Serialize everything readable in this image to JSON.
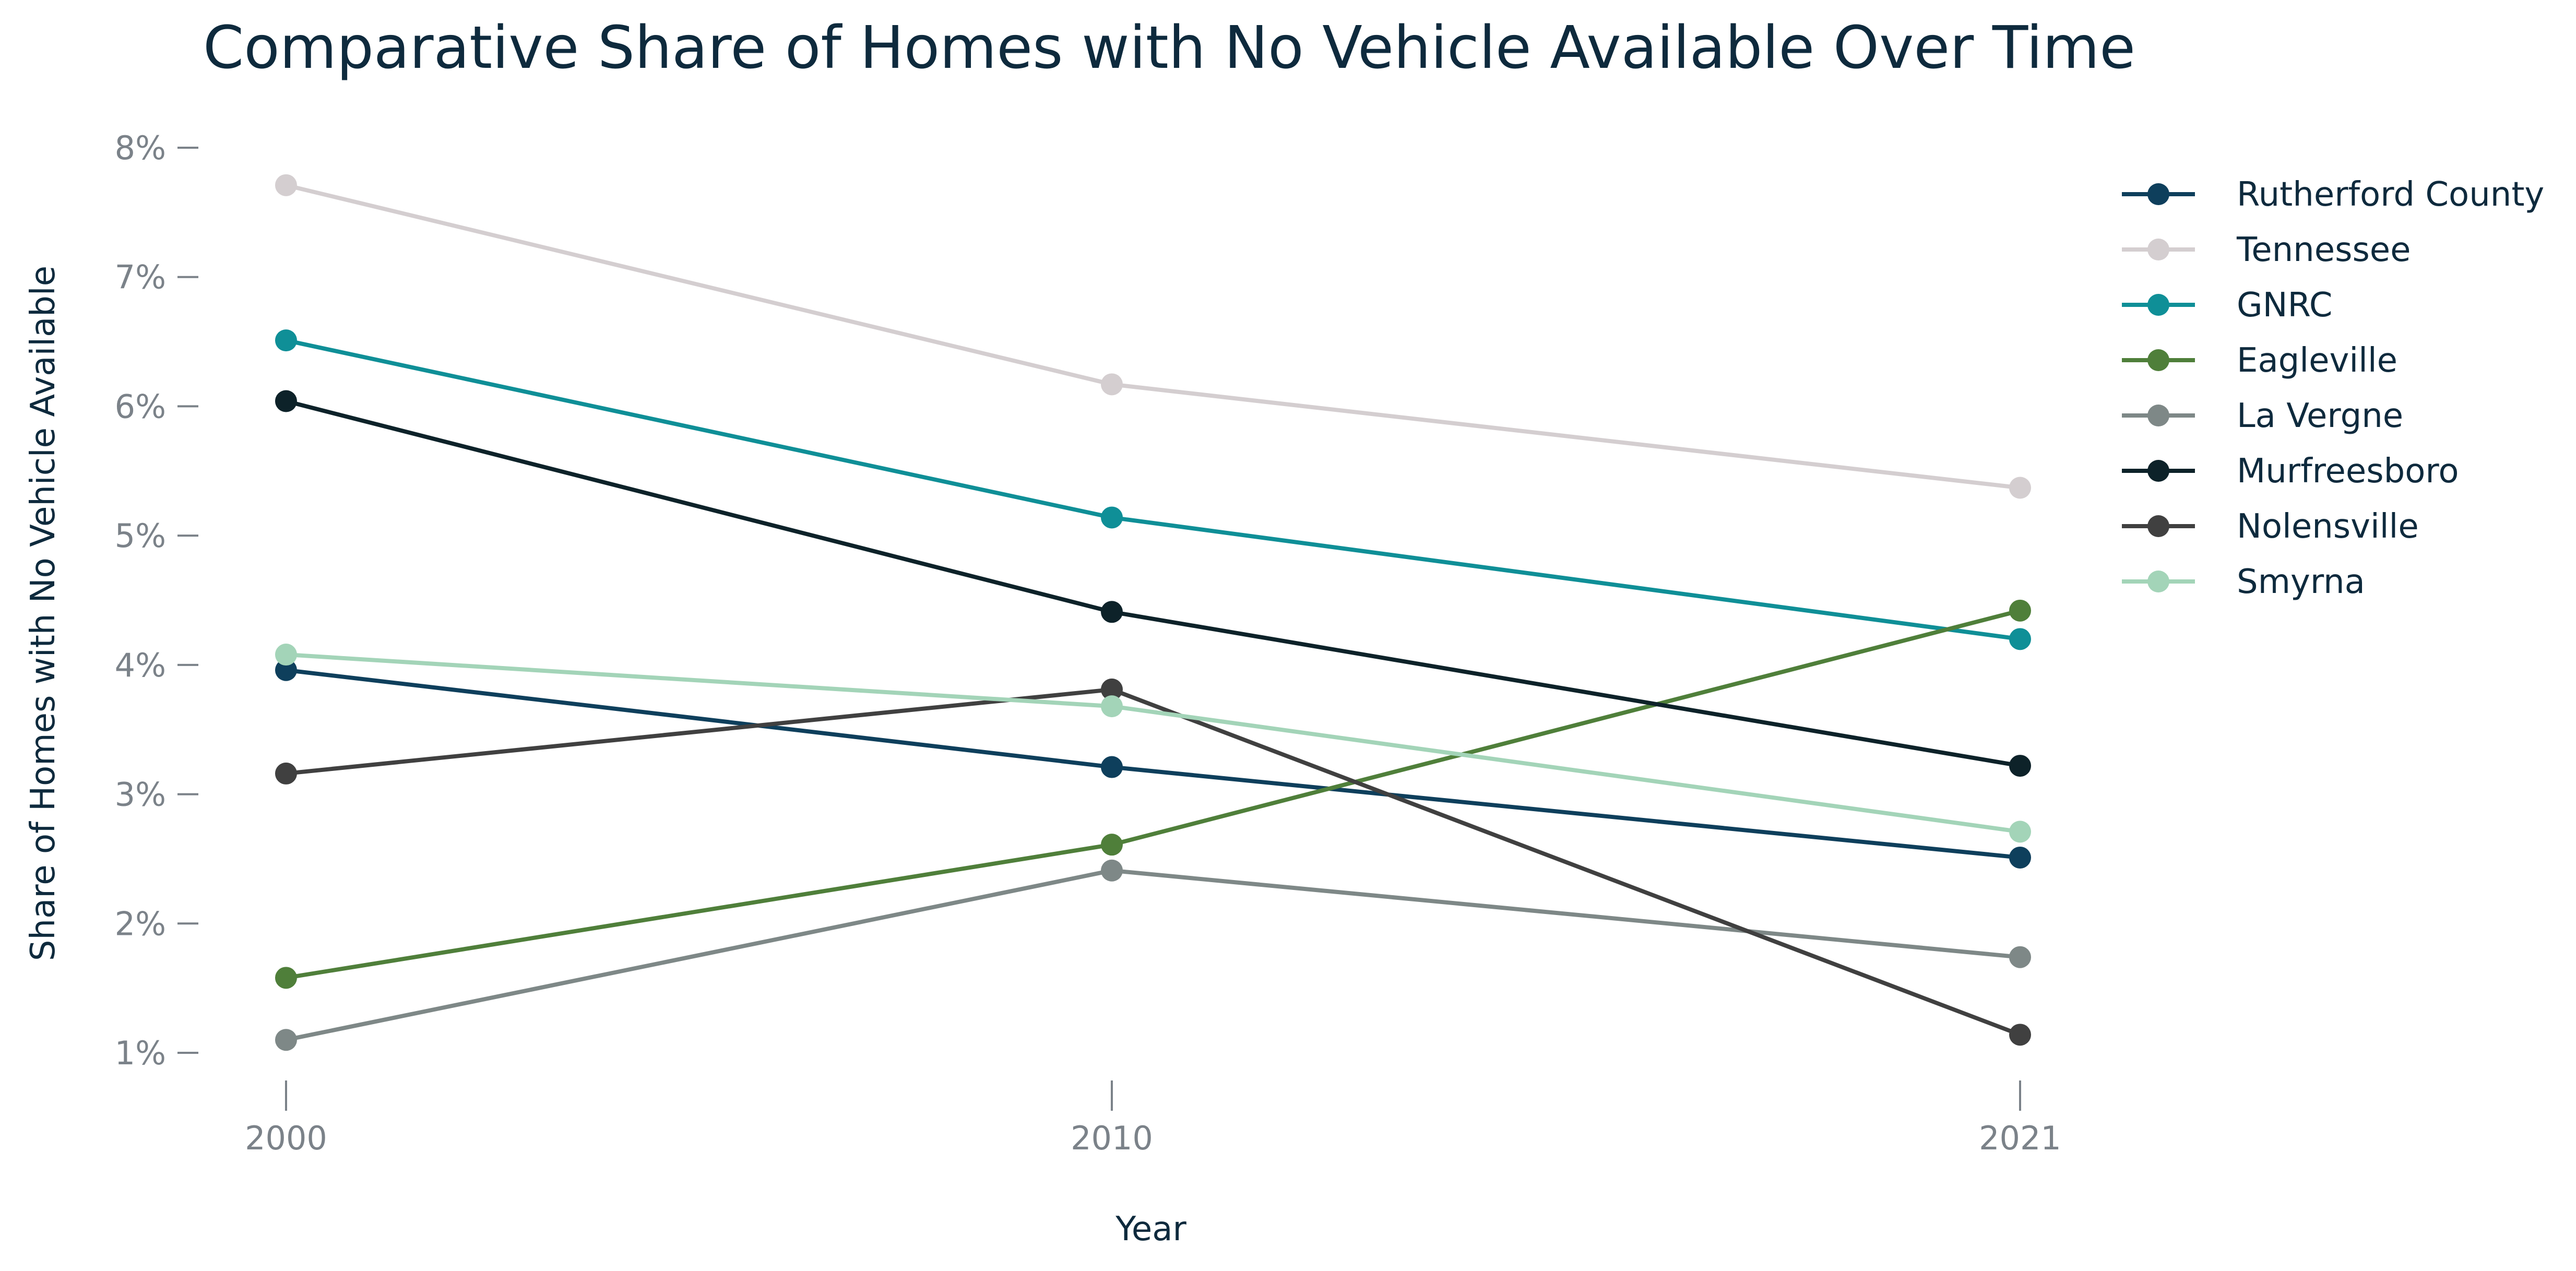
{
  "chart_data": {
    "type": "line",
    "title": "Comparative Share of Homes with No Vehicle Available Over Time",
    "xlabel": "Year",
    "ylabel": "Share of Homes with No Vehicle Available",
    "x": [
      "2000",
      "2010",
      "2021"
    ],
    "y_ticks": [
      "1%",
      "2%",
      "3%",
      "4%",
      "5%",
      "6%",
      "7%",
      "8%"
    ],
    "ylim": [
      0.9,
      8.2
    ],
    "y_unit": "%",
    "grid": false,
    "legend_position": "right",
    "series": [
      {
        "name": "Rutherford County",
        "color": "#0e3f5c",
        "values": [
          3.96,
          3.21,
          2.51
        ]
      },
      {
        "name": "Tennessee",
        "color": "#d4ced0",
        "values": [
          7.71,
          6.17,
          5.37
        ]
      },
      {
        "name": "GNRC",
        "color": "#0f8f97",
        "values": [
          6.51,
          5.14,
          4.2
        ]
      },
      {
        "name": "Eagleville",
        "color": "#4f7f3a",
        "values": [
          1.58,
          2.61,
          4.42
        ]
      },
      {
        "name": "La Vergne",
        "color": "#7e8887",
        "values": [
          1.1,
          2.41,
          1.74
        ]
      },
      {
        "name": "Murfreesboro",
        "color": "#0d2229",
        "values": [
          6.04,
          4.41,
          3.22
        ]
      },
      {
        "name": "Nolensville",
        "color": "#404040",
        "values": [
          3.16,
          3.81,
          1.14
        ]
      },
      {
        "name": "Smyrna",
        "color": "#a3d4b8",
        "values": [
          4.08,
          3.68,
          2.71
        ]
      }
    ]
  }
}
